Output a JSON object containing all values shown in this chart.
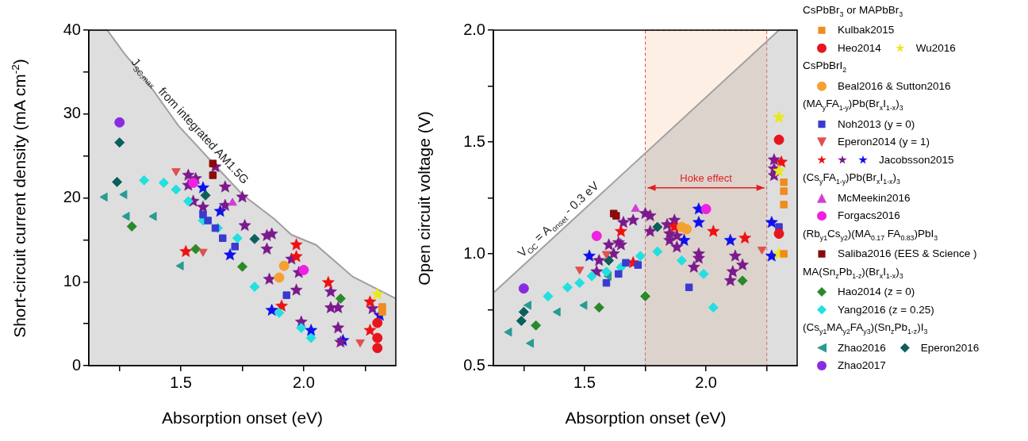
{
  "chart_data": [
    {
      "type": "scatter",
      "ylabel": "Short-circuit current density (mA cm$^{-2}$)",
      "xlabel": "Absorption onset (eV)",
      "xlim": [
        1.125,
        2.375
      ],
      "xticks": [
        {
          "value": 1.25,
          "label": null
        },
        {
          "value": 1.5,
          "label": "1.5"
        },
        {
          "value": 1.75,
          "label": null
        },
        {
          "value": 2,
          "label": "2.0"
        },
        {
          "value": 2.25,
          "label": null
        }
      ],
      "ylim": [
        0,
        40
      ],
      "yticks": [
        0,
        {
          "value": 5,
          "label": null
        },
        10,
        {
          "value": 15,
          "label": null
        },
        20,
        {
          "value": 25,
          "label": null
        },
        30,
        {
          "value": 35,
          "label": null
        },
        40
      ],
      "grid": false,
      "legend": false,
      "annotations": [
        "J$_{SC,max}$  from integrated AM1.5G"
      ],
      "series": [
        {
          "type": "area",
          "color": "#a0a0a0",
          "x": [
            1.125,
            1.2,
            1.27,
            1.33,
            1.39,
            1.49,
            1.61,
            1.75,
            1.88,
            1.95,
            2.05,
            2.2,
            2.375
          ],
          "values": [
            40,
            40,
            37.2,
            35.1,
            32.7,
            28.6,
            24.8,
            20.4,
            17.5,
            15.6,
            14.4,
            10.6,
            8.0
          ]
        },
        {
          "color": "#f08c1e",
          "marker": "square",
          "x": [
            2.32,
            2.32
          ],
          "values": [
            7.0,
            6.4
          ]
        },
        {
          "color": "#e8141e",
          "marker": "circle",
          "x": [
            2.3,
            2.3,
            2.3
          ],
          "values": [
            5.1,
            3.3,
            2.1
          ]
        },
        {
          "color": "#e8e820",
          "marker": "star",
          "x": [
            2.3
          ],
          "values": [
            8.5
          ]
        },
        {
          "color": "#f5a030",
          "marker": "circle",
          "x": [
            1.92,
            1.9
          ],
          "values": [
            11.9,
            10.5
          ]
        },
        {
          "color": "#3a3ad0",
          "marker": "square",
          "x": [
            1.59,
            1.61,
            1.64,
            1.67,
            1.72,
            1.93
          ],
          "values": [
            18.0,
            17.3,
            16.4,
            15.2,
            14.2,
            8.4
          ]
        },
        {
          "color": "#e05050",
          "marker": "triangle-down",
          "x": [
            1.48,
            1.59,
            2.23
          ],
          "values": [
            23.2,
            13.6,
            2.8
          ]
        },
        {
          "color": "#ee1111",
          "marker": "star",
          "x": [
            1.52,
            1.91,
            1.97,
            1.97,
            2.1,
            2.27,
            2.27
          ],
          "values": [
            13.6,
            7.1,
            14.4,
            13.0,
            9.9,
            7.6,
            4.2
          ]
        },
        {
          "color": "#7a1a8c",
          "marker": "star",
          "x": [
            1.53,
            1.56,
            1.53,
            1.55,
            1.59,
            1.64,
            1.68,
            1.68,
            1.75,
            1.76,
            1.85,
            1.87,
            1.85,
            1.86,
            1.95,
            1.98,
            1.97,
            1.99,
            2.11,
            2.11,
            2.14,
            2.14,
            2.15,
            2.28
          ],
          "values": [
            22.7,
            22.3,
            21.5,
            19.6,
            18.9,
            23.7,
            21.3,
            19.1,
            20.1,
            16.7,
            15.5,
            15.7,
            13.9,
            10.3,
            12.7,
            11.1,
            9.0,
            5.2,
            8.8,
            6.9,
            6.9,
            4.5,
            2.8,
            6.8
          ]
        },
        {
          "color": "#1010ee",
          "marker": "star",
          "x": [
            1.59,
            1.66,
            1.7,
            1.87,
            2.03,
            2.16,
            2.31
          ],
          "values": [
            21.2,
            18.4,
            13.2,
            6.6,
            4.2,
            3.0,
            6.0
          ]
        },
        {
          "color": "#d040d0",
          "marker": "triangle",
          "x": [
            1.71
          ],
          "values": [
            19.4
          ]
        },
        {
          "color": "#f020e0",
          "marker": "circle",
          "x": [
            1.55,
            2.0
          ],
          "values": [
            21.8,
            11.4
          ]
        },
        {
          "color": "#8b0a0a",
          "marker": "square",
          "x": [
            1.63,
            1.63
          ],
          "values": [
            24.1,
            22.7
          ]
        },
        {
          "color": "#2a8a2a",
          "marker": "diamond",
          "x": [
            1.3,
            1.56,
            1.75,
            2.15
          ],
          "values": [
            16.6,
            13.9,
            11.8,
            8.0
          ]
        },
        {
          "color": "#22e0e0",
          "marker": "diamond",
          "x": [
            1.35,
            1.43,
            1.48,
            1.53,
            1.59,
            1.65,
            1.73,
            1.8,
            1.9,
            1.99,
            2.03
          ],
          "values": [
            22.1,
            21.8,
            21.0,
            19.6,
            17.3,
            16.4,
            15.2,
            9.4,
            6.3,
            4.5,
            3.3
          ]
        },
        {
          "color": "#2a9a94",
          "marker": "triangle-left",
          "x": [
            1.19,
            1.27,
            1.28,
            1.39,
            1.5
          ],
          "values": [
            20.1,
            20.4,
            17.8,
            17.8,
            11.9
          ]
        },
        {
          "color": "#0b5f5c",
          "marker": "diamond",
          "x": [
            1.25,
            1.24,
            1.6,
            1.8
          ],
          "values": [
            26.6,
            21.9,
            20.3,
            15.1
          ]
        },
        {
          "color": "#8a2be2",
          "marker": "circle",
          "x": [
            1.25
          ],
          "values": [
            29.0
          ]
        }
      ]
    },
    {
      "type": "scatter",
      "ylabel": "Open circuit voltage (V)",
      "xlabel": "Absorption onset (eV)",
      "xlim": [
        1.125,
        2.375
      ],
      "xticks": [
        {
          "value": 1.25,
          "label": null
        },
        {
          "value": 1.5,
          "label": "1.5"
        },
        {
          "value": 1.75,
          "label": null
        },
        {
          "value": 2,
          "label": "2.0"
        },
        {
          "value": 2.25,
          "label": null
        }
      ],
      "ylim": [
        0.5,
        2
      ],
      "yticks": [
        {
          "value": 0.5,
          "label": "0.5"
        },
        {
          "value": 0.75,
          "label": null
        },
        {
          "value": 1,
          "label": "1.0"
        },
        {
          "value": 1.25,
          "label": null
        },
        {
          "value": 1.5,
          "label": "1.5"
        },
        {
          "value": 1.75,
          "label": null
        },
        {
          "value": 2,
          "label": "2.0"
        }
      ],
      "grid": false,
      "legend": "right",
      "bands": [
        {
          "axis": "x",
          "from": 1.75,
          "to": 2.25,
          "label": "Hoke effect",
          "color": "#fde9dc"
        }
      ],
      "annotations": [
        "V$_{OC}$ = A$_{onset}$ - 0.3 eV",
        "CsPbBr$_{3}$ or MAPbBr$_{3}$",
        "CsPbBrI$_{2}$",
        "(MA$_{y}$FA$_{1-y}$)Pb(Br$_{x}$I$_{1-x}$)$_{3}$",
        "(Cs$_{y}$FA$_{1-y}$)Pb(Br$_{x}$I$_{1-x}$)$_{3}$",
        "(Rb$_{y1}$Cs$_{y2}$)(MA$_{0.17}$ FA$_{0.83}$)PbI$_{3}$",
        "MA(Sn$_{z}$Pb$_{1-z}$)(Br$_{x}$I$_{1-x}$)$_{3}$",
        "(Cs$_{y1}$MA$_{y2}$FA$_{y3}$)(Sn$_{z}$Pb$_{1-z}$)I$_{3}$"
      ],
      "series": [
        {
          "type": "area",
          "color": "#a0a0a0",
          "x": [
            1.125,
            2.3,
            2.375
          ],
          "values": [
            0.825,
            2.0,
            2.0
          ]
        },
        {
          "name": "Kulbak2015",
          "color": "#f08c1e",
          "marker": "square",
          "x": [
            2.32,
            2.32,
            2.32,
            2.32
          ],
          "values": [
            1.32,
            1.28,
            1.22,
            1.0
          ]
        },
        {
          "name": "Heo2014",
          "color": "#e8141e",
          "marker": "circle",
          "x": [
            2.3,
            2.3
          ],
          "values": [
            1.51,
            1.09
          ]
        },
        {
          "name": "Wu2016",
          "color": "#e8e820",
          "marker": "star",
          "x": [
            2.3,
            2.3,
            2.3
          ],
          "values": [
            1.61,
            1.37,
            1.0
          ]
        },
        {
          "name": "Beal2016 & Sutton2016",
          "color": "#f5a030",
          "marker": "circle",
          "x": [
            1.9,
            1.92
          ],
          "values": [
            1.12,
            1.11
          ]
        },
        {
          "name": "Noh2013 (y = 0)",
          "color": "#3a3ad0",
          "marker": "square",
          "x": [
            1.59,
            1.64,
            1.67,
            1.72,
            1.93,
            2.3
          ],
          "values": [
            0.87,
            0.91,
            0.96,
            0.95,
            0.85,
            1.12
          ]
        },
        {
          "name": "Eperon2014  (y = 1)",
          "color": "#e05050",
          "marker": "triangle-down",
          "x": [
            1.48,
            1.59,
            2.23
          ],
          "values": [
            0.93,
            1.0,
            1.02
          ]
        },
        {
          "color": "#ee1111",
          "marker": "star",
          "x": [
            1.65,
            1.7,
            1.87,
            2.03,
            2.16,
            2.31
          ],
          "values": [
            1.1,
            0.96,
            1.12,
            1.1,
            1.07,
            1.41
          ]
        },
        {
          "color": "#7a1a8c",
          "marker": "star",
          "x": [
            1.55,
            1.56,
            1.6,
            1.62,
            1.64,
            1.66,
            1.7,
            1.65,
            1.75,
            1.77,
            1.77,
            1.84,
            1.87,
            1.85,
            1.85,
            1.88,
            1.88,
            1.97,
            1.97,
            1.95,
            2.12,
            2.15,
            2.11,
            2.1,
            2.28,
            2.28,
            2.28
          ],
          "values": [
            0.92,
            0.97,
            1.04,
            1.0,
            1.05,
            1.14,
            1.15,
            1.04,
            1.18,
            1.17,
            1.1,
            1.13,
            1.15,
            1.09,
            1.06,
            1.08,
            1.03,
            1.0,
            0.98,
            0.94,
            0.99,
            0.95,
            0.92,
            0.88,
            1.42,
            1.38,
            1.35
          ]
        },
        {
          "name": "Jacobsson2015",
          "color": "#1010ee",
          "marker": "star",
          "x": [
            1.52,
            1.91,
            1.97,
            1.97,
            2.1,
            2.27,
            2.27
          ],
          "values": [
            0.99,
            1.06,
            1.2,
            1.14,
            1.06,
            1.14,
            0.99
          ]
        },
        {
          "name": "McMeekin2016",
          "color": "#d040d0",
          "marker": "triangle",
          "x": [
            1.71
          ],
          "values": [
            1.2
          ]
        },
        {
          "name": "Forgacs2016",
          "color": "#f020e0",
          "marker": "circle",
          "x": [
            1.55,
            2.0
          ],
          "values": [
            1.08,
            1.2
          ]
        },
        {
          "name": "Saliba2016  (EES & Science )",
          "color": "#8b0a0a",
          "marker": "square",
          "x": [
            1.62,
            1.63
          ],
          "values": [
            1.18,
            1.17
          ]
        },
        {
          "name": "Hao2014 (z = 0)",
          "color": "#2a8a2a",
          "marker": "diamond",
          "x": [
            1.3,
            1.56,
            1.75,
            2.15
          ],
          "values": [
            0.68,
            0.76,
            0.81,
            0.88
          ]
        },
        {
          "name": "Yang2016 (z = 0.25)",
          "color": "#22e0e0",
          "marker": "diamond",
          "x": [
            1.35,
            1.43,
            1.48,
            1.53,
            1.59,
            1.65,
            1.73,
            1.8,
            1.9,
            1.99,
            2.03
          ],
          "values": [
            0.81,
            0.85,
            0.87,
            0.9,
            0.92,
            0.94,
            0.99,
            1.01,
            0.97,
            0.91,
            0.76
          ]
        },
        {
          "name": "Zhao2016",
          "color": "#2a9a94",
          "marker": "triangle-left",
          "x": [
            1.19,
            1.27,
            1.28,
            1.39,
            1.5,
            1.6
          ],
          "values": [
            0.65,
            0.77,
            0.6,
            0.74,
            0.77,
            0.9
          ]
        },
        {
          "name": "Eperon2016",
          "color": "#0b5f5c",
          "marker": "diamond",
          "x": [
            1.25,
            1.24,
            1.6,
            1.8
          ],
          "values": [
            0.74,
            0.7,
            0.97,
            1.12
          ]
        },
        {
          "name": "Zhao2017",
          "color": "#8a2be2",
          "marker": "circle",
          "x": [
            1.25
          ],
          "values": [
            0.845
          ]
        }
      ]
    }
  ]
}
